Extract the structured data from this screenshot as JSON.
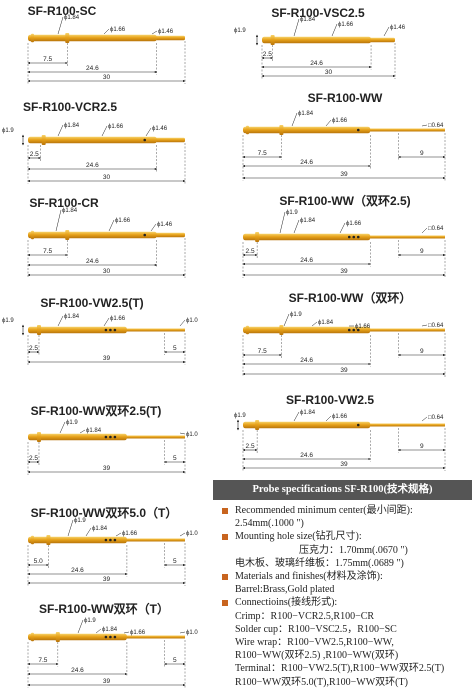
{
  "drawings": [
    {
      "title": "SF-R100-SC",
      "callouts": [
        "ϕ1.84",
        "ϕ1.66",
        "ϕ1.46"
      ],
      "dims": [
        "7.5",
        "24.6",
        "30"
      ]
    },
    {
      "title": "SF-R100-VCR2.5",
      "callouts": [
        "ϕ1.84",
        "ϕ1.66",
        "ϕ1.46",
        "ϕ1.9"
      ],
      "dims": [
        "2.5",
        "24.6",
        "30"
      ]
    },
    {
      "title": "SF-R100-CR",
      "callouts": [
        "ϕ1.84",
        "ϕ1.66",
        "ϕ1.46"
      ],
      "dims": [
        "7.5",
        "24.6",
        "30"
      ]
    },
    {
      "title": "SF-R100-VW2.5(T)",
      "callouts": [
        "ϕ1.84",
        "ϕ1.66",
        "ϕ1.0",
        "ϕ1.9"
      ],
      "dims": [
        "2.5",
        "5",
        "39"
      ]
    },
    {
      "title": "SF-R100-WW双环2.5(T)",
      "callouts": [
        "ϕ1.9",
        "ϕ1.84",
        "ϕ1.0"
      ],
      "dims": [
        "2.5",
        "5",
        "39"
      ]
    },
    {
      "title": "SF-R100-WW双环5.0（T）",
      "callouts": [
        "ϕ1.9",
        "ϕ1.84",
        "ϕ1.66",
        "ϕ1.0"
      ],
      "dims": [
        "5.0",
        "5",
        "24.6",
        "39"
      ]
    },
    {
      "title": "SF-R100-WW双环（T）",
      "callouts": [
        "ϕ1.9",
        "ϕ1.84",
        "ϕ1.66",
        "ϕ1.0"
      ],
      "dims": [
        "7.5",
        "5",
        "24.6",
        "39"
      ]
    },
    {
      "title": "SF-R100-VSC2.5",
      "callouts": [
        "ϕ1.84",
        "ϕ1.66",
        "ϕ1.46",
        "ϕ1.9"
      ],
      "dims": [
        "2.5",
        "24.6",
        "30"
      ]
    },
    {
      "title": "SF-R100-WW",
      "callouts": [
        "ϕ1.84",
        "ϕ1.66",
        "□0.64"
      ],
      "dims": [
        "7.5",
        "9",
        "24.6",
        "39"
      ]
    },
    {
      "title": "SF-R100-WW（双环2.5)",
      "callouts": [
        "ϕ1.9",
        "ϕ1.84",
        "ϕ1.66",
        "□0.64"
      ],
      "dims": [
        "2.5",
        "9",
        "24.6",
        "39"
      ]
    },
    {
      "title": "SF-R100-WW（双环）",
      "callouts": [
        "ϕ1.9",
        "ϕ1.84",
        "ϕ1.66",
        "□0.64"
      ],
      "dims": [
        "7.5",
        "9",
        "24.6",
        "39"
      ]
    },
    {
      "title": "SF-R100-VW2.5",
      "callouts": [
        "ϕ1.84",
        "ϕ1.66",
        "□0.64",
        "ϕ1.9"
      ],
      "dims": [
        "2.5",
        "9",
        "24.6",
        "39"
      ]
    }
  ],
  "specs": {
    "title": "Probe specifications SF-R100(技术规格)",
    "items": [
      {
        "heading": "Recommended minimum center(最小间距):",
        "lines": [
          "2.54mm(.1000 \")"
        ]
      },
      {
        "heading": "Mounting hole size(钻孔尺寸):",
        "lines": [
          "压克力：1.70mm(.0670 \")",
          "电木板、玻璃纤维板：1.75mm(.0689 \")"
        ]
      },
      {
        "heading": "Materials and finishes(材料及涂饰):",
        "lines": [
          "Barrel:Brass,Gold plated"
        ]
      },
      {
        "heading": "Connectioins(接线形式):",
        "lines": [
          "Crimp：R100−VCR2.5,R100−CR",
          "Solder cup：R100−VSC2.5，R100−SC",
          "Wire wrap：R100−VW2.5,R100−WW,",
          "R100−WW(双环2.5) ,R100−WW(双环)",
          "Terminal：R100−VW2.5(T),R100−WW双环2.5(T)",
          "R100−WW双环5.0(T),R100−WW双环(T)"
        ]
      }
    ]
  }
}
